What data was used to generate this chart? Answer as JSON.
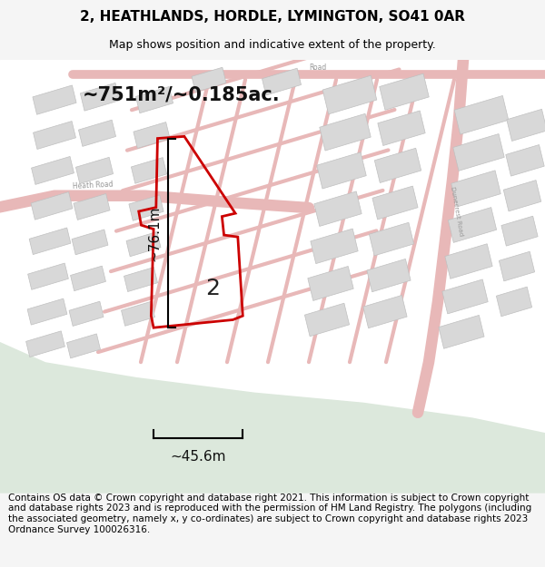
{
  "title": "2, HEATHLANDS, HORDLE, LYMINGTON, SO41 0AR",
  "subtitle": "Map shows position and indicative extent of the property.",
  "area_text": "~751m²/~0.185ac.",
  "dim_width": "~45.6m",
  "dim_height": "~76.1m",
  "label": "2",
  "footer": "Contains OS data © Crown copyright and database right 2021. This information is subject to Crown copyright and database rights 2023 and is reproduced with the permission of HM Land Registry. The polygons (including the associated geometry, namely x, y co-ordinates) are subject to Crown copyright and database rights 2023 Ordnance Survey 100026316.",
  "bg_color": "#f5f5f5",
  "map_bg": "#ffffff",
  "green_color": "#dce8dc",
  "road_color": "#e8b8b8",
  "building_face": "#d8d8d8",
  "building_edge": "#c0c0c0",
  "red_color": "#cc0000",
  "title_fontsize": 11,
  "subtitle_fontsize": 9,
  "footer_fontsize": 7.5
}
